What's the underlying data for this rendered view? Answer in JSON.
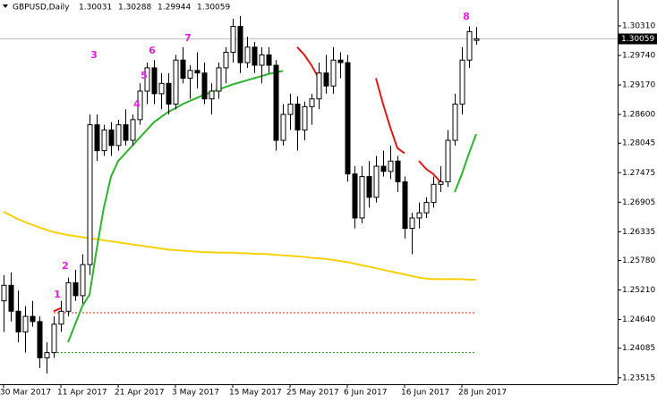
{
  "chart_data": {
    "type": "candlestick",
    "title": "GBPUSD,Daily",
    "categories": [
      "30 Mar 2017",
      null,
      null,
      null,
      null,
      null,
      null,
      null,
      "11 Apr 2017",
      null,
      null,
      null,
      null,
      null,
      null,
      null,
      "21 Apr 2017",
      null,
      null,
      null,
      null,
      null,
      null,
      null,
      "3 May 2017",
      null,
      null,
      null,
      null,
      null,
      null,
      null,
      "15 May 2017",
      null,
      null,
      null,
      null,
      null,
      null,
      null,
      "25 May 2017",
      null,
      null,
      null,
      null,
      null,
      null,
      null,
      "6 Jun 2017",
      null,
      null,
      null,
      null,
      null,
      null,
      null,
      "16 Jun 2017",
      null,
      null,
      null,
      null,
      null,
      null,
      null,
      "28 Jun 2017",
      null,
      null
    ],
    "open": [
      1.25,
      1.253,
      1.248,
      1.244,
      1.247,
      1.246,
      1.239,
      1.24,
      1.2455,
      1.248,
      1.2535,
      1.251,
      1.257,
      1.284,
      1.279,
      1.283,
      1.28,
      1.284,
      1.281,
      1.285,
      1.2905,
      1.295,
      1.29,
      1.292,
      1.288,
      1.2965,
      1.293,
      1.2945,
      1.294,
      1.289,
      1.2905,
      1.295,
      1.298,
      1.303,
      1.296,
      1.299,
      1.2955,
      1.2975,
      1.2955,
      1.281,
      1.286,
      1.288,
      1.283,
      1.2875,
      1.289,
      1.294,
      1.2915,
      1.2965,
      1.296,
      1.2745,
      1.266,
      1.274,
      1.27,
      1.276,
      1.275,
      1.277,
      1.273,
      1.264,
      1.266,
      1.267,
      1.269,
      1.2725,
      1.273,
      1.281,
      1.288,
      1.2965,
      1.30031
    ],
    "high": [
      1.255,
      1.2555,
      1.252,
      1.249,
      1.25,
      1.247,
      1.242,
      1.247,
      1.25,
      1.2545,
      1.256,
      1.259,
      1.286,
      1.286,
      1.284,
      1.2845,
      1.285,
      1.287,
      1.286,
      1.292,
      1.296,
      1.2965,
      1.294,
      1.294,
      1.2975,
      1.299,
      1.2955,
      1.298,
      1.296,
      1.292,
      1.296,
      1.299,
      1.3045,
      1.305,
      1.301,
      1.3,
      1.299,
      1.299,
      1.2965,
      1.288,
      1.29,
      1.2895,
      1.2885,
      1.29,
      1.296,
      1.2975,
      1.299,
      1.298,
      1.2975,
      1.276,
      1.276,
      1.277,
      1.278,
      1.279,
      1.28,
      1.278,
      1.274,
      1.267,
      1.269,
      1.27,
      1.274,
      1.276,
      1.283,
      1.29,
      1.299,
      1.303,
      1.30288
    ],
    "low": [
      1.244,
      1.246,
      1.242,
      1.24,
      1.245,
      1.237,
      1.236,
      1.239,
      1.244,
      1.247,
      1.25,
      1.2495,
      1.255,
      1.277,
      1.278,
      1.278,
      1.279,
      1.28,
      1.28,
      1.284,
      1.288,
      1.288,
      1.287,
      1.286,
      1.287,
      1.292,
      1.289,
      1.291,
      1.288,
      1.286,
      1.289,
      1.292,
      1.296,
      1.294,
      1.295,
      1.294,
      1.292,
      1.294,
      1.279,
      1.28,
      1.283,
      1.279,
      1.281,
      1.284,
      1.287,
      1.29,
      1.29,
      1.293,
      1.273,
      1.264,
      1.265,
      1.268,
      1.269,
      1.274,
      1.2735,
      1.271,
      1.262,
      1.259,
      1.264,
      1.266,
      1.268,
      1.271,
      1.272,
      1.28,
      1.286,
      1.295,
      1.29944
    ],
    "close": [
      1.253,
      1.248,
      1.244,
      1.247,
      1.246,
      1.239,
      1.24,
      1.2455,
      1.248,
      1.2535,
      1.251,
      1.257,
      1.284,
      1.279,
      1.283,
      1.28,
      1.284,
      1.281,
      1.285,
      1.2905,
      1.295,
      1.29,
      1.292,
      1.288,
      1.2965,
      1.293,
      1.2945,
      1.294,
      1.289,
      1.2905,
      1.295,
      1.298,
      1.303,
      1.296,
      1.299,
      1.2955,
      1.2975,
      1.2955,
      1.281,
      1.286,
      1.288,
      1.283,
      1.2875,
      1.289,
      1.294,
      1.2915,
      1.2965,
      1.296,
      1.2745,
      1.266,
      1.274,
      1.27,
      1.276,
      1.275,
      1.277,
      1.273,
      1.264,
      1.266,
      1.267,
      1.269,
      1.2725,
      1.273,
      1.281,
      1.288,
      1.2965,
      1.302,
      1.30059
    ],
    "ylim": [
      1.2339,
      1.3081
    ],
    "yticks": [
      {
        "value": 1.3031,
        "label": "1.30310"
      },
      {
        "value": 1.2974,
        "label": "1.29740"
      },
      {
        "value": 1.2917,
        "label": "1.29170"
      },
      {
        "value": 1.286,
        "label": "1.28600"
      },
      1.28045,
      1.27475,
      1.26905,
      1.26335,
      {
        "value": 1.2578,
        "label": "1.25780"
      },
      {
        "value": 1.2521,
        "label": "1.25210"
      },
      {
        "value": 1.2464,
        "label": "1.24640"
      },
      1.24085,
      1.23515
    ],
    "up_color": "#ffffff",
    "down_color": "#000000",
    "overlays": [
      {
        "color": "#f5d10a",
        "values": [
          1.2672,
          1.2665,
          1.2658,
          1.2652,
          1.2647,
          1.2642,
          1.2637,
          1.2633,
          1.263,
          1.2627,
          1.2625,
          1.2623,
          1.2621,
          1.2619,
          1.2617,
          1.2615,
          1.2613,
          1.2611,
          1.2609,
          1.2607,
          1.2605,
          1.2603,
          1.2601,
          1.2599,
          1.2598,
          1.2597,
          1.2596,
          1.2595,
          1.2594,
          1.2594,
          1.2593,
          1.2593,
          1.2593,
          1.2592,
          1.2592,
          1.2591,
          1.2591,
          1.259,
          1.2589,
          1.2588,
          1.2587,
          1.2586,
          1.2585,
          1.2583,
          1.2582,
          1.2581,
          1.2579,
          1.2577,
          1.2575,
          1.2572,
          1.2569,
          1.2566,
          1.2563,
          1.256,
          1.2557,
          1.2554,
          1.2551,
          1.2548,
          1.2545,
          1.2543,
          1.2542,
          1.2542,
          1.2542,
          1.2542,
          1.2542,
          1.2541,
          1.2541
        ]
      },
      {
        "color": "#2bb52b",
        "values": [
          null,
          null,
          null,
          null,
          null,
          null,
          null,
          null,
          null,
          1.242,
          1.2455,
          1.249,
          1.2512,
          1.26,
          1.268,
          1.274,
          1.277,
          1.2785,
          1.28,
          1.2815,
          1.283,
          1.2845,
          1.2855,
          1.2865,
          1.2872,
          1.288,
          1.2886,
          1.2892,
          1.2898,
          1.2903,
          1.2908,
          1.2913,
          1.2918,
          1.2922,
          1.2926,
          1.293,
          1.2934,
          1.2938,
          1.2941,
          1.2944,
          null,
          null,
          null,
          null,
          null,
          null,
          null,
          null,
          null,
          null,
          null,
          null,
          null,
          null,
          null,
          null,
          null,
          null,
          null,
          null,
          null,
          null,
          null,
          1.271,
          1.2745,
          1.2785,
          1.2822
        ]
      },
      {
        "color": "#e01818",
        "values": [
          null,
          null,
          null,
          null,
          null,
          null,
          null,
          1.248,
          1.2486,
          null,
          null,
          null,
          null,
          null,
          null,
          null,
          null,
          null,
          null,
          null,
          null,
          null,
          null,
          null,
          null,
          null,
          null,
          null,
          null,
          null,
          null,
          null,
          null,
          null,
          null,
          null,
          null,
          null,
          null,
          null,
          null,
          1.299,
          1.2975,
          1.2955,
          1.293,
          null,
          null,
          null,
          null,
          null,
          null,
          null,
          1.293,
          1.288,
          1.2835,
          1.2795,
          1.2785,
          null,
          1.277,
          1.2755,
          1.2745,
          1.273,
          null,
          null,
          null,
          null,
          null
        ]
      }
    ],
    "levels": [
      {
        "value": 1.2477,
        "color": "#d02020"
      },
      {
        "value": 1.24,
        "color": "#208020"
      }
    ],
    "annotations": [
      "1",
      "2",
      "3",
      "4",
      "5",
      "6",
      "7",
      "8"
    ],
    "annotation_color": "#e020e0"
  }
}
